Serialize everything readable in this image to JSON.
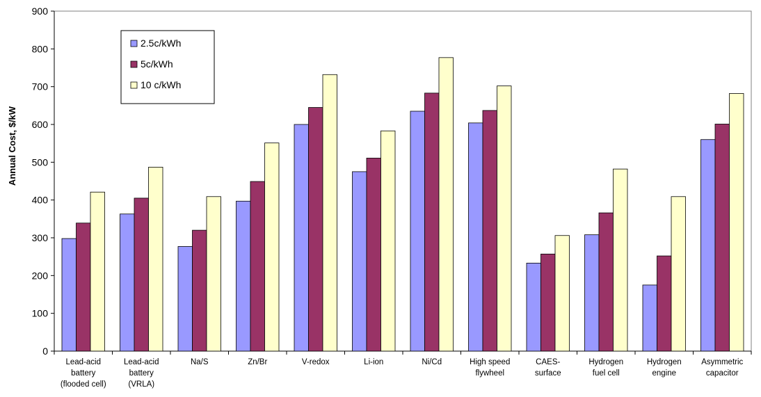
{
  "chart_data": {
    "type": "bar",
    "title": "",
    "xlabel": "",
    "ylabel": "Annual Cost, $/kW",
    "ylim": [
      0,
      900
    ],
    "yticks": [
      0,
      100,
      200,
      300,
      400,
      500,
      600,
      700,
      800,
      900
    ],
    "grid": false,
    "legend_position": "top-left",
    "categories": [
      [
        "Lead-acid",
        "battery",
        "(flooded cell)"
      ],
      [
        "Lead-acid",
        "battery",
        "(VRLA)"
      ],
      [
        "Na/S"
      ],
      [
        "Zn/Br"
      ],
      [
        "V-redox"
      ],
      [
        "Li-ion"
      ],
      [
        "Ni/Cd"
      ],
      [
        "High speed",
        "flywheel"
      ],
      [
        "CAES-",
        "surface"
      ],
      [
        "Hydrogen",
        "fuel cell"
      ],
      [
        "Hydrogen",
        "engine"
      ],
      [
        "Asymmetric",
        "capacitor"
      ]
    ],
    "series": [
      {
        "name": "2.5c/kWh",
        "color": "#9999ff",
        "values": [
          298,
          363,
          277,
          397,
          600,
          475,
          635,
          604,
          233,
          308,
          175,
          560
        ]
      },
      {
        "name": "5c/kWh",
        "color": "#993366",
        "values": [
          339,
          405,
          320,
          449,
          645,
          511,
          683,
          637,
          257,
          366,
          252,
          601
        ]
      },
      {
        "name": "10 c/kWh",
        "color": "#ffffcc",
        "values": [
          421,
          487,
          409,
          551,
          732,
          583,
          777,
          702,
          306,
          482,
          409,
          682
        ]
      }
    ]
  }
}
